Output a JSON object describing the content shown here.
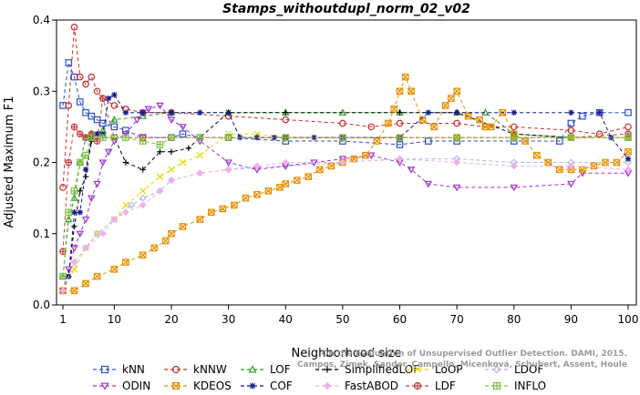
{
  "chart_data": {
    "type": "line",
    "title": "Stamps_withoutdupl_norm_02_v02",
    "xlabel": "Neighborhood size",
    "ylabel": "Adjusted Maximum F1",
    "xlim": [
      1,
      100
    ],
    "ylim": [
      0,
      0.4
    ],
    "xticks": [
      1,
      10,
      20,
      30,
      40,
      50,
      60,
      70,
      80,
      90,
      100
    ],
    "yticks": [
      0.0,
      0.1,
      0.2,
      0.3,
      0.4
    ],
    "grid": false,
    "legend_position": "bottom",
    "watermark": [
      "Campos, Zimek, Sander, Campello, Micenková, Schubert, Assent, Houle",
      "On the Evaluation of Unsupervised Outlier Detection. DAMI, 2015."
    ],
    "series": [
      {
        "name": "kNN",
        "color": "#2a4fd0",
        "marker": "square",
        "points": [
          [
            1,
            0.28
          ],
          [
            2,
            0.34
          ],
          [
            3,
            0.32
          ],
          [
            4,
            0.285
          ],
          [
            5,
            0.27
          ],
          [
            6,
            0.265
          ],
          [
            7,
            0.26
          ],
          [
            8,
            0.255
          ],
          [
            10,
            0.25
          ],
          [
            12,
            0.245
          ],
          [
            15,
            0.235
          ],
          [
            20,
            0.235
          ],
          [
            22,
            0.24
          ],
          [
            25,
            0.235
          ],
          [
            30,
            0.235
          ],
          [
            40,
            0.23
          ],
          [
            50,
            0.23
          ],
          [
            60,
            0.225
          ],
          [
            65,
            0.23
          ],
          [
            70,
            0.23
          ],
          [
            80,
            0.23
          ],
          [
            88,
            0.23
          ],
          [
            90,
            0.255
          ],
          [
            92,
            0.265
          ],
          [
            95,
            0.27
          ],
          [
            100,
            0.27
          ]
        ]
      },
      {
        "name": "kNNW",
        "color": "#d02a2a",
        "marker": "circle",
        "points": [
          [
            1,
            0.165
          ],
          [
            2,
            0.28
          ],
          [
            3,
            0.39
          ],
          [
            4,
            0.32
          ],
          [
            5,
            0.31
          ],
          [
            6,
            0.32
          ],
          [
            7,
            0.3
          ],
          [
            8,
            0.29
          ],
          [
            10,
            0.28
          ],
          [
            12,
            0.275
          ],
          [
            15,
            0.27
          ],
          [
            20,
            0.27
          ],
          [
            30,
            0.265
          ],
          [
            40,
            0.26
          ],
          [
            50,
            0.255
          ],
          [
            55,
            0.25
          ],
          [
            60,
            0.255
          ],
          [
            70,
            0.255
          ],
          [
            75,
            0.25
          ],
          [
            80,
            0.25
          ],
          [
            90,
            0.245
          ],
          [
            95,
            0.24
          ],
          [
            100,
            0.25
          ]
        ]
      },
      {
        "name": "LOF",
        "color": "#2aa02a",
        "marker": "triangle-up",
        "points": [
          [
            1,
            0.04
          ],
          [
            2,
            0.12
          ],
          [
            3,
            0.15
          ],
          [
            4,
            0.2
          ],
          [
            5,
            0.235
          ],
          [
            6,
            0.24
          ],
          [
            8,
            0.245
          ],
          [
            10,
            0.26
          ],
          [
            15,
            0.265
          ],
          [
            20,
            0.27
          ],
          [
            30,
            0.27
          ],
          [
            40,
            0.27
          ],
          [
            50,
            0.27
          ],
          [
            60,
            0.27
          ],
          [
            70,
            0.27
          ],
          [
            75,
            0.27
          ],
          [
            80,
            0.24
          ],
          [
            90,
            0.235
          ],
          [
            100,
            0.235
          ]
        ]
      },
      {
        "name": "SimplifiedLOF",
        "color": "#000000",
        "marker": "plus",
        "points": [
          [
            1,
            0.02
          ],
          [
            2,
            0.04
          ],
          [
            3,
            0.11
          ],
          [
            4,
            0.16
          ],
          [
            5,
            0.18
          ],
          [
            6,
            0.23
          ],
          [
            8,
            0.235
          ],
          [
            10,
            0.235
          ],
          [
            12,
            0.2
          ],
          [
            15,
            0.19
          ],
          [
            18,
            0.215
          ],
          [
            20,
            0.215
          ],
          [
            23,
            0.22
          ],
          [
            25,
            0.235
          ],
          [
            30,
            0.27
          ],
          [
            40,
            0.27
          ],
          [
            60,
            0.27
          ],
          [
            70,
            0.27
          ],
          [
            80,
            0.24
          ],
          [
            90,
            0.235
          ],
          [
            100,
            0.235
          ]
        ]
      },
      {
        "name": "LoOP",
        "color": "#e8d800",
        "marker": "x",
        "points": [
          [
            1,
            0.02
          ],
          [
            3,
            0.05
          ],
          [
            5,
            0.08
          ],
          [
            7,
            0.1
          ],
          [
            10,
            0.12
          ],
          [
            12,
            0.14
          ],
          [
            15,
            0.16
          ],
          [
            18,
            0.18
          ],
          [
            20,
            0.19
          ],
          [
            22,
            0.2
          ],
          [
            25,
            0.21
          ],
          [
            30,
            0.24
          ],
          [
            35,
            0.24
          ],
          [
            40,
            0.235
          ],
          [
            50,
            0.235
          ],
          [
            60,
            0.235
          ],
          [
            70,
            0.235
          ],
          [
            80,
            0.235
          ],
          [
            90,
            0.235
          ],
          [
            100,
            0.235
          ]
        ]
      },
      {
        "name": "LDOF",
        "color": "#b0b8e8",
        "marker": "diamond",
        "points": [
          [
            1,
            0.02
          ],
          [
            3,
            0.06
          ],
          [
            5,
            0.08
          ],
          [
            7,
            0.1
          ],
          [
            10,
            0.12
          ],
          [
            13,
            0.14
          ],
          [
            15,
            0.15
          ],
          [
            18,
            0.16
          ],
          [
            20,
            0.175
          ],
          [
            25,
            0.185
          ],
          [
            30,
            0.19
          ],
          [
            40,
            0.195
          ],
          [
            50,
            0.2
          ],
          [
            60,
            0.205
          ],
          [
            70,
            0.205
          ],
          [
            80,
            0.2
          ],
          [
            90,
            0.2
          ],
          [
            100,
            0.2
          ]
        ]
      },
      {
        "name": "ODIN",
        "color": "#a030d0",
        "marker": "triangle-down",
        "points": [
          [
            1,
            0.02
          ],
          [
            2,
            0.05
          ],
          [
            3,
            0.08
          ],
          [
            4,
            0.1
          ],
          [
            5,
            0.12
          ],
          [
            6,
            0.15
          ],
          [
            7,
            0.17
          ],
          [
            8,
            0.2
          ],
          [
            9,
            0.215
          ],
          [
            10,
            0.23
          ],
          [
            12,
            0.24
          ],
          [
            14,
            0.26
          ],
          [
            15,
            0.27
          ],
          [
            16,
            0.275
          ],
          [
            18,
            0.28
          ],
          [
            20,
            0.26
          ],
          [
            22,
            0.25
          ],
          [
            25,
            0.23
          ],
          [
            30,
            0.2
          ],
          [
            35,
            0.19
          ],
          [
            40,
            0.195
          ],
          [
            45,
            0.2
          ],
          [
            50,
            0.205
          ],
          [
            55,
            0.21
          ],
          [
            60,
            0.2
          ],
          [
            62,
            0.19
          ],
          [
            65,
            0.17
          ],
          [
            70,
            0.165
          ],
          [
            80,
            0.165
          ],
          [
            90,
            0.17
          ],
          [
            92,
            0.185
          ],
          [
            100,
            0.185
          ]
        ]
      },
      {
        "name": "KDEOS",
        "color": "#e89000",
        "marker": "square-x",
        "points": [
          [
            1,
            0.02
          ],
          [
            3,
            0.02
          ],
          [
            5,
            0.03
          ],
          [
            7,
            0.04
          ],
          [
            10,
            0.05
          ],
          [
            12,
            0.06
          ],
          [
            15,
            0.07
          ],
          [
            17,
            0.08
          ],
          [
            19,
            0.09
          ],
          [
            20,
            0.1
          ],
          [
            22,
            0.11
          ],
          [
            25,
            0.12
          ],
          [
            27,
            0.13
          ],
          [
            29,
            0.135
          ],
          [
            31,
            0.14
          ],
          [
            33,
            0.15
          ],
          [
            35,
            0.155
          ],
          [
            37,
            0.16
          ],
          [
            39,
            0.165
          ],
          [
            40,
            0.17
          ],
          [
            42,
            0.175
          ],
          [
            44,
            0.18
          ],
          [
            46,
            0.19
          ],
          [
            48,
            0.195
          ],
          [
            50,
            0.2
          ],
          [
            52,
            0.205
          ],
          [
            54,
            0.21
          ],
          [
            56,
            0.23
          ],
          [
            58,
            0.255
          ],
          [
            59,
            0.275
          ],
          [
            60,
            0.3
          ],
          [
            61,
            0.32
          ],
          [
            62,
            0.3
          ],
          [
            64,
            0.26
          ],
          [
            66,
            0.25
          ],
          [
            68,
            0.28
          ],
          [
            69,
            0.29
          ],
          [
            70,
            0.3
          ],
          [
            72,
            0.265
          ],
          [
            74,
            0.26
          ],
          [
            75,
            0.25
          ],
          [
            76,
            0.25
          ],
          [
            78,
            0.27
          ],
          [
            80,
            0.24
          ],
          [
            82,
            0.23
          ],
          [
            84,
            0.21
          ],
          [
            86,
            0.2
          ],
          [
            88,
            0.19
          ],
          [
            90,
            0.19
          ],
          [
            92,
            0.19
          ],
          [
            94,
            0.195
          ],
          [
            96,
            0.2
          ],
          [
            98,
            0.2
          ],
          [
            100,
            0.215
          ]
        ]
      },
      {
        "name": "COF",
        "color": "#14188a",
        "marker": "asterisk",
        "points": [
          [
            1,
            0.02
          ],
          [
            2,
            0.04
          ],
          [
            3,
            0.13
          ],
          [
            4,
            0.13
          ],
          [
            5,
            0.19
          ],
          [
            6,
            0.235
          ],
          [
            7,
            0.24
          ],
          [
            8,
            0.24
          ],
          [
            9,
            0.29
          ],
          [
            10,
            0.295
          ],
          [
            12,
            0.27
          ],
          [
            15,
            0.27
          ],
          [
            20,
            0.27
          ],
          [
            25,
            0.27
          ],
          [
            30,
            0.27
          ],
          [
            32,
            0.235
          ],
          [
            35,
            0.235
          ],
          [
            38,
            0.235
          ],
          [
            40,
            0.235
          ],
          [
            45,
            0.235
          ],
          [
            50,
            0.235
          ],
          [
            60,
            0.235
          ],
          [
            65,
            0.27
          ],
          [
            70,
            0.27
          ],
          [
            80,
            0.27
          ],
          [
            90,
            0.27
          ],
          [
            95,
            0.27
          ],
          [
            97,
            0.235
          ],
          [
            100,
            0.205
          ]
        ]
      },
      {
        "name": "FastABOD",
        "color": "#f0b0f0",
        "marker": "diamond-filled",
        "points": [
          [
            1,
            0.02
          ],
          [
            3,
            0.06
          ],
          [
            5,
            0.08
          ],
          [
            8,
            0.1
          ],
          [
            10,
            0.12
          ],
          [
            12,
            0.13
          ],
          [
            15,
            0.14
          ],
          [
            18,
            0.16
          ],
          [
            20,
            0.175
          ],
          [
            25,
            0.185
          ],
          [
            30,
            0.19
          ],
          [
            35,
            0.195
          ],
          [
            40,
            0.2
          ],
          [
            50,
            0.2
          ],
          [
            60,
            0.205
          ],
          [
            70,
            0.2
          ],
          [
            80,
            0.195
          ],
          [
            90,
            0.195
          ],
          [
            100,
            0.19
          ]
        ]
      },
      {
        "name": "LDF",
        "color": "#c04040",
        "marker": "circle-plus",
        "points": [
          [
            1,
            0.075
          ],
          [
            2,
            0.2
          ],
          [
            3,
            0.25
          ],
          [
            4,
            0.24
          ],
          [
            5,
            0.235
          ],
          [
            6,
            0.24
          ],
          [
            7,
            0.23
          ],
          [
            8,
            0.29
          ],
          [
            10,
            0.235
          ],
          [
            15,
            0.235
          ],
          [
            20,
            0.235
          ],
          [
            30,
            0.235
          ],
          [
            40,
            0.235
          ],
          [
            50,
            0.235
          ],
          [
            60,
            0.235
          ],
          [
            70,
            0.235
          ],
          [
            80,
            0.235
          ],
          [
            90,
            0.235
          ],
          [
            100,
            0.24
          ]
        ]
      },
      {
        "name": "INFLO",
        "color": "#80c040",
        "marker": "square-cross",
        "points": [
          [
            1,
            0.04
          ],
          [
            2,
            0.13
          ],
          [
            3,
            0.16
          ],
          [
            4,
            0.2
          ],
          [
            5,
            0.21
          ],
          [
            6,
            0.235
          ],
          [
            8,
            0.235
          ],
          [
            10,
            0.235
          ],
          [
            12,
            0.235
          ],
          [
            15,
            0.23
          ],
          [
            18,
            0.225
          ],
          [
            20,
            0.235
          ],
          [
            25,
            0.235
          ],
          [
            30,
            0.235
          ],
          [
            40,
            0.235
          ],
          [
            50,
            0.235
          ],
          [
            60,
            0.235
          ],
          [
            70,
            0.235
          ],
          [
            80,
            0.235
          ],
          [
            90,
            0.235
          ],
          [
            100,
            0.235
          ]
        ]
      }
    ]
  }
}
